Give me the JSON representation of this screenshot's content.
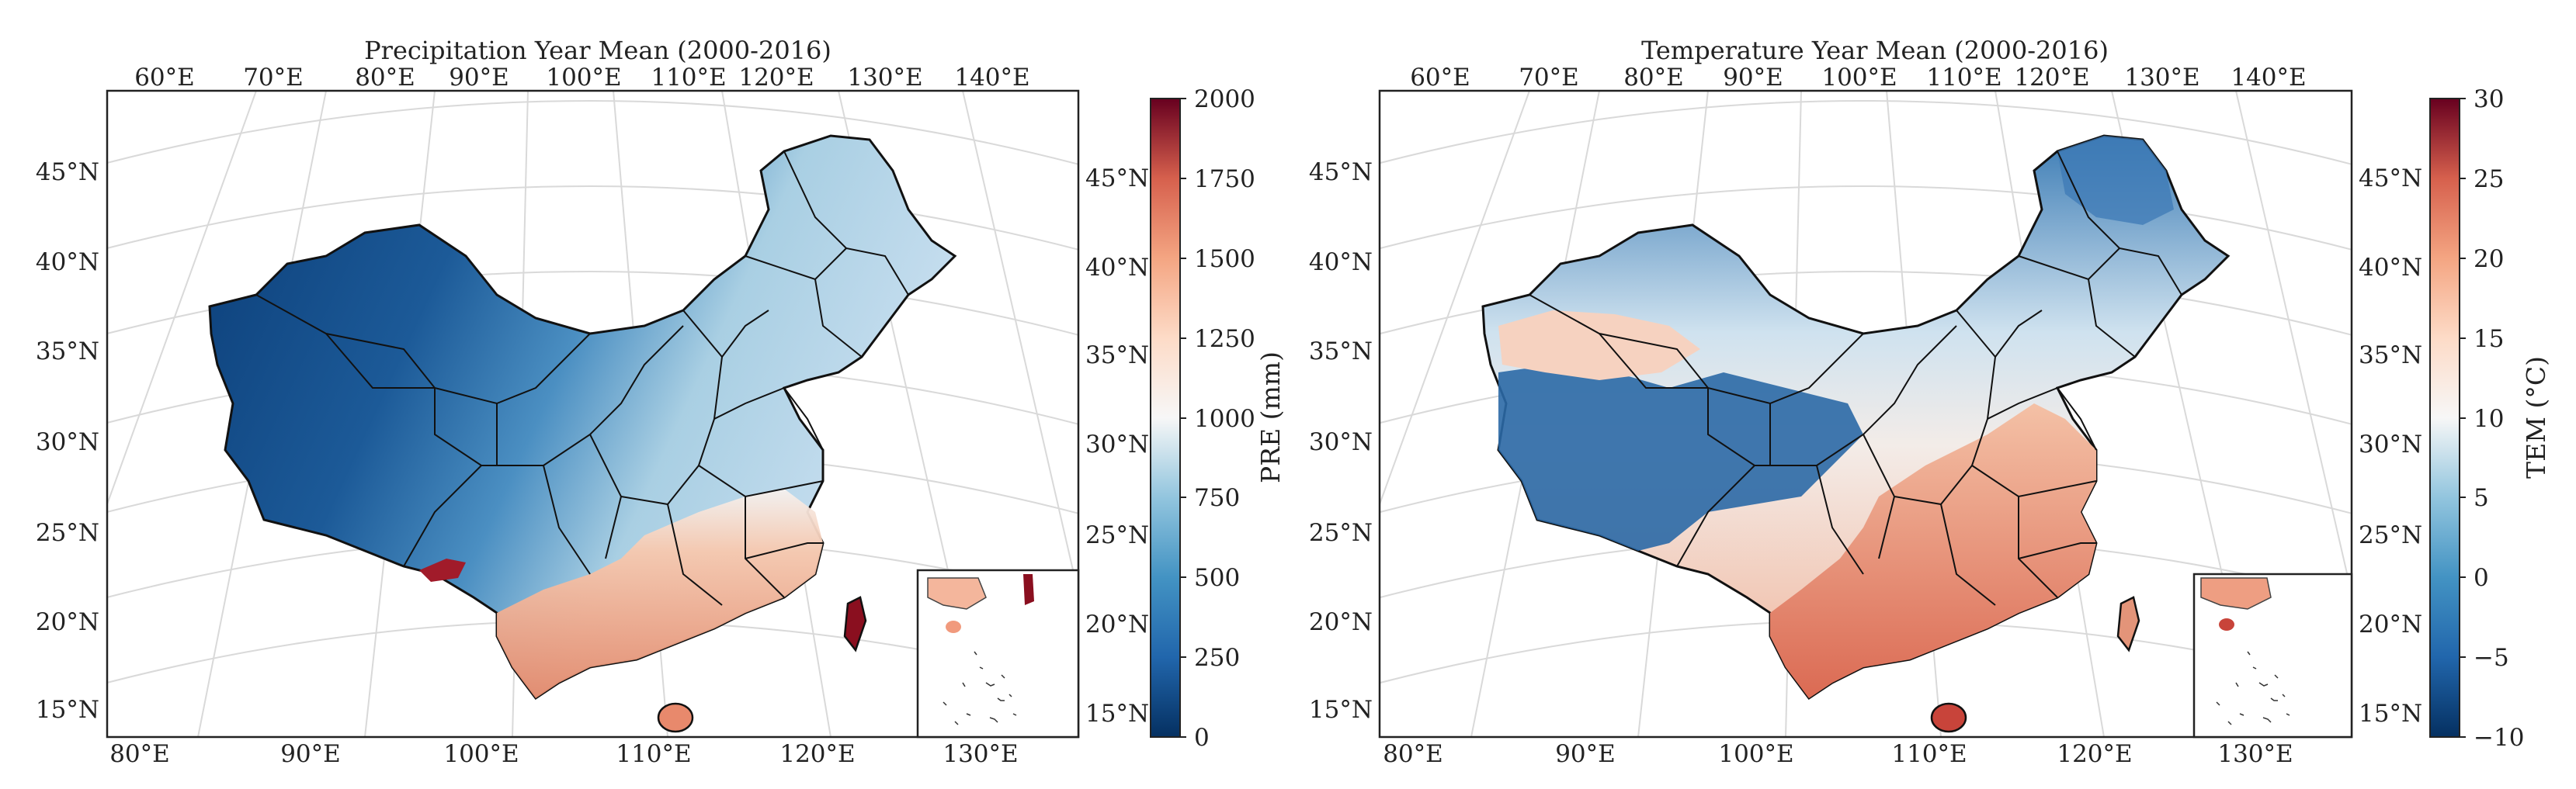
{
  "maps": [
    {
      "id": "precipitation",
      "title": "Precipitation Year Mean (2000-2016)",
      "top_lon_labels": [
        "60°E",
        "70°E",
        "80°E",
        "90°E",
        "100°E",
        "110°E",
        "120°E",
        "130°E",
        "140°E"
      ],
      "bottom_lon_labels": [
        "80°E",
        "90°E",
        "100°E",
        "110°E",
        "120°E",
        "130°E"
      ],
      "left_lat_labels": [
        "45°N",
        "40°N",
        "35°N",
        "30°N",
        "25°N",
        "20°N",
        "15°N"
      ],
      "right_lat_labels": [
        "45°N",
        "40°N",
        "35°N",
        "30°N",
        "25°N",
        "20°N",
        "15°N"
      ],
      "colorbar": {
        "label": "PRE (mm)",
        "ticks": [
          "2000",
          "1750",
          "1500",
          "1250",
          "1000",
          "750",
          "500",
          "250",
          "0"
        ],
        "min": 0,
        "max": 2000,
        "colormap": "RdBu_r"
      }
    },
    {
      "id": "temperature",
      "title": "Temperature Year Mean (2000-2016)",
      "top_lon_labels": [
        "60°E",
        "70°E",
        "80°E",
        "90°E",
        "100°E",
        "110°E",
        "120°E",
        "130°E",
        "140°E"
      ],
      "bottom_lon_labels": [
        "80°E",
        "90°E",
        "100°E",
        "110°E",
        "120°E",
        "130°E"
      ],
      "left_lat_labels": [
        "45°N",
        "40°N",
        "35°N",
        "30°N",
        "25°N",
        "20°N",
        "15°N"
      ],
      "right_lat_labels": [
        "45°N",
        "40°N",
        "35°N",
        "30°N",
        "25°N",
        "20°N",
        "15°N"
      ],
      "colorbar": {
        "label": "TEM (°C)",
        "ticks": [
          "30",
          "25",
          "20",
          "15",
          "10",
          "5",
          "0",
          "−5",
          "−10"
        ],
        "min": -10,
        "max": 30,
        "colormap": "RdBu_r"
      }
    }
  ],
  "colors": {
    "dark_blue": "#08306b",
    "blue": "#2166ac",
    "light_blue": "#92c5de",
    "white": "#f7f7f7",
    "light_red": "#f4a582",
    "red": "#d6604d",
    "dark_red": "#67001f",
    "grid": "#cfcfcf",
    "border": "#111111"
  }
}
